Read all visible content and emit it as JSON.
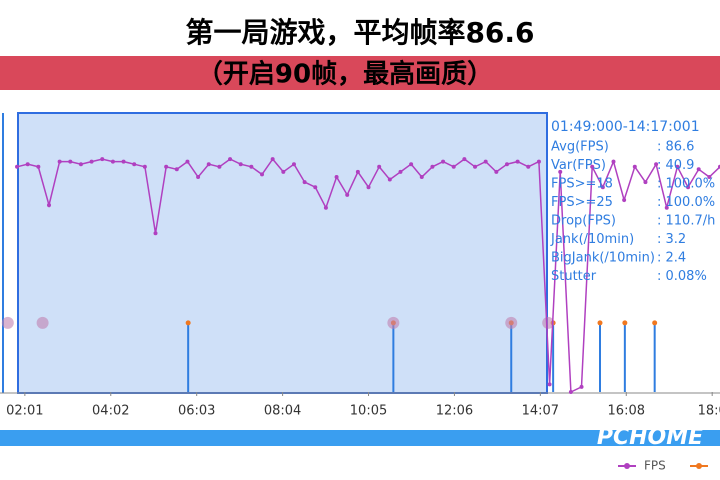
{
  "chart_data": {
    "type": "line",
    "title": "第一局游戏，平均帧率86.6",
    "subtitle": "（开启90帧，最高画质）",
    "selection_label": "01:49:000-14:17:001",
    "stats": [
      {
        "label": "Avg(FPS)",
        "text": ": 86.6"
      },
      {
        "label": "Var(FPS)",
        "text": ": 40.9"
      },
      {
        "label": "FPS>=18",
        "text": ": 100.0%"
      },
      {
        "label": "FPS>=25",
        "text": ": 100.0%"
      },
      {
        "label": "Drop(FPS)",
        "text": ": 110.7/h"
      },
      {
        "label": "Jank(/10min)",
        "text": ": 3.2"
      },
      {
        "label": "BigJank(/10min)",
        "text": ": 2.4"
      },
      {
        "label": "Stutter",
        "text": ": 0.08%"
      }
    ],
    "watermark": "PCHOME",
    "xlim": [
      86,
      1100
    ],
    "ylim": [
      0,
      109
    ],
    "xticks": [
      {
        "value": 121,
        "label": "02:01"
      },
      {
        "value": 242,
        "label": "04:02"
      },
      {
        "value": 363,
        "label": "06:03"
      },
      {
        "value": 484,
        "label": "08:04"
      },
      {
        "value": 605,
        "label": "10:05"
      },
      {
        "value": 726,
        "label": "12:06"
      },
      {
        "value": 847,
        "label": "14:07"
      },
      {
        "value": 968,
        "label": "16:08"
      },
      {
        "value": 1089,
        "label": "18:0"
      }
    ],
    "series": [
      {
        "name": "FPS",
        "color": "#b040c0",
        "x": [
          110,
          125,
          140,
          155,
          170,
          185,
          200,
          215,
          230,
          245,
          260,
          275,
          290,
          305,
          320,
          335,
          350,
          365,
          380,
          395,
          410,
          425,
          440,
          455,
          470,
          485,
          500,
          515,
          530,
          545,
          560,
          575,
          590,
          605,
          620,
          635,
          650,
          665,
          680,
          695,
          710,
          725,
          740,
          755,
          770,
          785,
          800,
          815,
          830,
          845,
          860,
          875,
          890,
          905,
          920,
          935,
          950,
          965,
          980,
          995,
          1010,
          1025,
          1040,
          1055,
          1070,
          1085,
          1100
        ],
        "values": [
          88,
          89,
          88,
          73,
          90,
          90,
          89,
          90,
          91,
          90,
          90,
          89,
          88,
          62,
          88,
          87,
          90,
          84,
          89,
          88,
          91,
          89,
          88,
          85,
          91,
          86,
          89,
          82,
          80,
          72,
          84,
          77,
          86,
          80,
          88,
          83,
          86,
          89,
          84,
          88,
          90,
          88,
          91,
          88,
          90,
          86,
          89,
          90,
          88,
          90,
          3,
          86,
          0,
          2,
          88,
          80,
          90,
          75,
          88,
          82,
          89,
          72,
          88,
          80,
          87,
          84,
          88
        ]
      },
      {
        "color": "#f07820",
        "x": [
          351,
          640,
          806,
          865,
          931,
          966,
          1008
        ],
        "values": [
          27,
          27,
          27,
          27,
          27,
          27,
          27
        ]
      },
      {
        "color": "#c080b0",
        "x": [
          97,
          146,
          640,
          806,
          858
        ],
        "values": [
          27,
          27,
          27,
          27,
          27
        ]
      }
    ]
  }
}
